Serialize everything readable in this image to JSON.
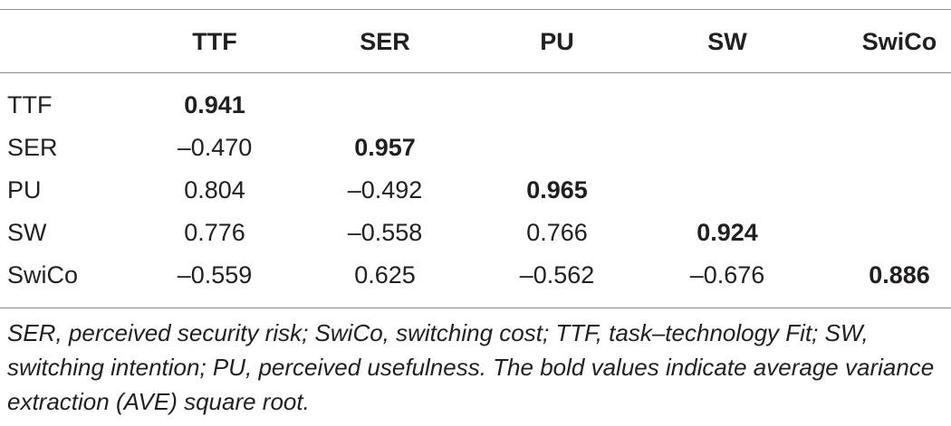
{
  "table": {
    "columns": [
      "",
      "TTF",
      "SER",
      "PU",
      "SW",
      "SwiCo"
    ],
    "rows": [
      {
        "label": "TTF",
        "values": [
          "0.941",
          "",
          "",
          "",
          ""
        ]
      },
      {
        "label": "SER",
        "values": [
          "–0.470",
          "0.957",
          "",
          "",
          ""
        ]
      },
      {
        "label": "PU",
        "values": [
          "0.804",
          "–0.492",
          "0.965",
          "",
          ""
        ]
      },
      {
        "label": "SW",
        "values": [
          "0.776",
          "–0.558",
          "0.766",
          "0.924",
          ""
        ]
      },
      {
        "label": "SwiCo",
        "values": [
          "–0.559",
          "0.625",
          "–0.562",
          "–0.676",
          "0.886"
        ]
      }
    ]
  },
  "footnote": "SER, perceived security risk; SwiCo, switching cost; TTF, task–technology Fit; SW, switching intention; PU, perceived usefulness. The bold values indicate average variance extraction (AVE) square root."
}
